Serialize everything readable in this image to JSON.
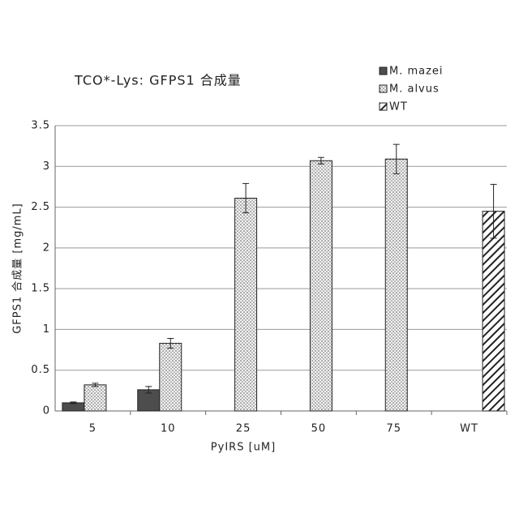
{
  "chart_data": {
    "type": "bar",
    "title": "TCO*-Lys: GFPS1 合成量",
    "x_label": "PyIRS [uM]",
    "y_label": "GFPS1 合成量 [mg/mL]",
    "categories": [
      "5",
      "10",
      "25",
      "50",
      "75",
      "WT"
    ],
    "series": [
      {
        "name": "M. mazei",
        "color": "#4d4d4d",
        "pattern": "solid",
        "values": [
          0.1,
          0.26,
          null,
          null,
          null,
          null
        ],
        "errors": [
          0.01,
          0.04,
          null,
          null,
          null,
          null
        ]
      },
      {
        "name": "M. alvus",
        "color": "#9a9a9a",
        "pattern": "dots",
        "values": [
          0.32,
          0.83,
          2.61,
          3.07,
          3.09,
          null
        ],
        "errors": [
          0.02,
          0.06,
          0.18,
          0.04,
          0.18,
          null
        ]
      },
      {
        "name": "WT",
        "color": "#222222",
        "pattern": "hatch",
        "values": [
          null,
          null,
          null,
          null,
          null,
          2.45
        ],
        "errors": [
          null,
          null,
          null,
          null,
          null,
          0.33
        ]
      }
    ],
    "ylim": [
      0,
      3.5
    ],
    "yticks": [
      0,
      0.5,
      1,
      1.5,
      2,
      2.5,
      3,
      3.5
    ],
    "grid": true,
    "legend": "top-right"
  }
}
